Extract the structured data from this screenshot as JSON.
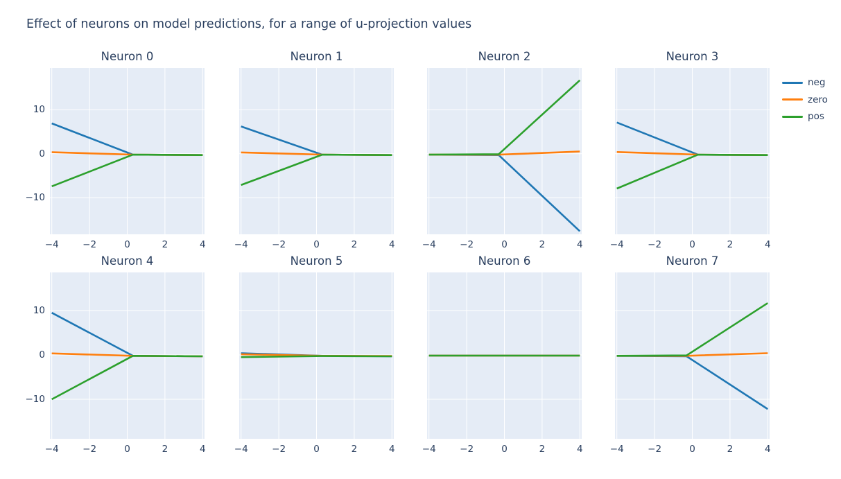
{
  "chart_data": {
    "type": "line",
    "title": "Effect of neurons on model predictions, for a range of u-projection values",
    "title_color": "#2a3f5f",
    "plot_bgcolor": "#e5ecf6",
    "grid_color": "#ffffff",
    "tick_color": "#2a3f5f",
    "grid_on": true,
    "legend": {
      "position": "top-right",
      "entries": [
        {
          "label": "neg",
          "color": "#1f77b4"
        },
        {
          "label": "zero",
          "color": "#ff7f0e"
        },
        {
          "label": "pos",
          "color": "#2ca02c"
        }
      ]
    },
    "x": {
      "lim": [
        -4.1,
        4.1
      ],
      "ticks": [
        -4,
        -2,
        0,
        2,
        4
      ],
      "tick_labels": [
        "−4",
        "−2",
        "0",
        "2",
        "4"
      ]
    },
    "y": {
      "ticks": [
        -10,
        0,
        10
      ],
      "tick_labels": [
        "−10",
        "0",
        "10"
      ]
    },
    "rows": [
      {
        "ylim": [
          -18.3,
          19.5
        ]
      },
      {
        "ylim": [
          -18.9,
          18.6
        ]
      }
    ],
    "subplots": [
      {
        "title": "Neuron 0",
        "row": 0,
        "col": 0,
        "series": [
          {
            "name": "neg",
            "points": [
              [
                -4,
                6.9
              ],
              [
                0.3,
                -0.2
              ],
              [
                4,
                -0.3
              ]
            ]
          },
          {
            "name": "zero",
            "points": [
              [
                -4,
                0.35
              ],
              [
                0.3,
                -0.2
              ],
              [
                4,
                -0.3
              ]
            ]
          },
          {
            "name": "pos",
            "points": [
              [
                -4,
                -7.4
              ],
              [
                0.3,
                -0.2
              ],
              [
                4,
                -0.3
              ]
            ]
          }
        ]
      },
      {
        "title": "Neuron 1",
        "row": 0,
        "col": 1,
        "series": [
          {
            "name": "neg",
            "points": [
              [
                -4,
                6.2
              ],
              [
                0.3,
                -0.2
              ],
              [
                4,
                -0.3
              ]
            ]
          },
          {
            "name": "zero",
            "points": [
              [
                -4,
                0.3
              ],
              [
                0.3,
                -0.2
              ],
              [
                4,
                -0.3
              ]
            ]
          },
          {
            "name": "pos",
            "points": [
              [
                -4,
                -7.1
              ],
              [
                0.3,
                -0.2
              ],
              [
                4,
                -0.3
              ]
            ]
          }
        ]
      },
      {
        "title": "Neuron 2",
        "row": 0,
        "col": 2,
        "series": [
          {
            "name": "neg",
            "points": [
              [
                -4,
                -0.2
              ],
              [
                -0.3,
                -0.3
              ],
              [
                4,
                -17.6
              ]
            ]
          },
          {
            "name": "zero",
            "points": [
              [
                -4,
                -0.2
              ],
              [
                -0.3,
                -0.2
              ],
              [
                4,
                0.5
              ]
            ]
          },
          {
            "name": "pos",
            "points": [
              [
                -4,
                -0.2
              ],
              [
                -0.3,
                -0.1
              ],
              [
                4,
                16.7
              ]
            ]
          }
        ]
      },
      {
        "title": "Neuron 3",
        "row": 0,
        "col": 3,
        "series": [
          {
            "name": "neg",
            "points": [
              [
                -4,
                7.1
              ],
              [
                0.3,
                -0.2
              ],
              [
                4,
                -0.3
              ]
            ]
          },
          {
            "name": "zero",
            "points": [
              [
                -4,
                0.4
              ],
              [
                0.3,
                -0.2
              ],
              [
                4,
                -0.3
              ]
            ]
          },
          {
            "name": "pos",
            "points": [
              [
                -4,
                -7.9
              ],
              [
                0.3,
                -0.2
              ],
              [
                4,
                -0.3
              ]
            ]
          }
        ]
      },
      {
        "title": "Neuron 4",
        "row": 1,
        "col": 0,
        "series": [
          {
            "name": "neg",
            "points": [
              [
                -4,
                9.5
              ],
              [
                0.3,
                -0.2
              ],
              [
                4,
                -0.3
              ]
            ]
          },
          {
            "name": "zero",
            "points": [
              [
                -4,
                0.35
              ],
              [
                0.3,
                -0.2
              ],
              [
                4,
                -0.3
              ]
            ]
          },
          {
            "name": "pos",
            "points": [
              [
                -4,
                -10.0
              ],
              [
                0.3,
                -0.2
              ],
              [
                4,
                -0.3
              ]
            ]
          }
        ]
      },
      {
        "title": "Neuron 5",
        "row": 1,
        "col": 1,
        "series": [
          {
            "name": "neg",
            "points": [
              [
                -4,
                0.4
              ],
              [
                0.3,
                -0.2
              ],
              [
                4,
                -0.3
              ]
            ]
          },
          {
            "name": "zero",
            "points": [
              [
                -4,
                0.15
              ],
              [
                0.3,
                -0.2
              ],
              [
                4,
                -0.25
              ]
            ]
          },
          {
            "name": "pos",
            "points": [
              [
                -4,
                -0.5
              ],
              [
                0.3,
                -0.25
              ],
              [
                4,
                -0.3
              ]
            ]
          }
        ]
      },
      {
        "title": "Neuron 6",
        "row": 1,
        "col": 2,
        "series": [
          {
            "name": "neg",
            "points": [
              [
                -4,
                -0.15
              ],
              [
                4,
                -0.15
              ]
            ]
          },
          {
            "name": "zero",
            "points": [
              [
                -4,
                -0.15
              ],
              [
                4,
                -0.15
              ]
            ]
          },
          {
            "name": "pos",
            "points": [
              [
                -4,
                -0.15
              ],
              [
                4,
                -0.15
              ]
            ]
          }
        ]
      },
      {
        "title": "Neuron 7",
        "row": 1,
        "col": 3,
        "series": [
          {
            "name": "neg",
            "points": [
              [
                -4,
                -0.2
              ],
              [
                -0.3,
                -0.3
              ],
              [
                4,
                -12.2
              ]
            ]
          },
          {
            "name": "zero",
            "points": [
              [
                -4,
                -0.2
              ],
              [
                -0.3,
                -0.2
              ],
              [
                4,
                0.4
              ]
            ]
          },
          {
            "name": "pos",
            "points": [
              [
                -4,
                -0.2
              ],
              [
                -0.3,
                -0.1
              ],
              [
                4,
                11.7
              ]
            ]
          }
        ]
      }
    ]
  }
}
